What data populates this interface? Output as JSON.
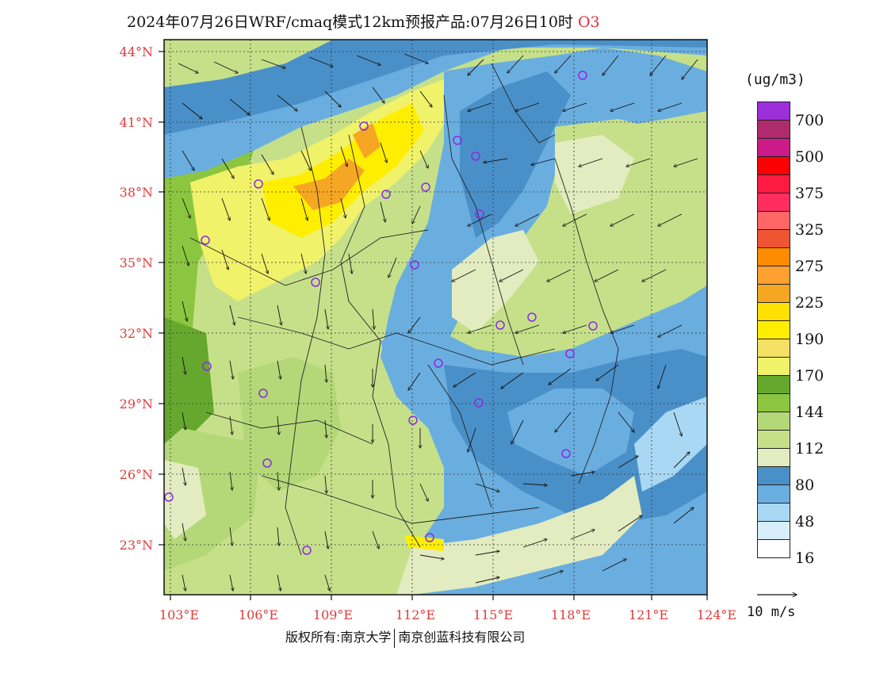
{
  "title": {
    "main": "2024年07月26日WRF/cmaq模式12km预报产品:07月26日10时",
    "species": "O3"
  },
  "axes": {
    "lat_labels": [
      "44°N",
      "41°N",
      "38°N",
      "35°N",
      "32°N",
      "29°N",
      "26°N",
      "23°N"
    ],
    "lon_labels": [
      "103°E",
      "106°E",
      "109°E",
      "112°E",
      "115°E",
      "118°E",
      "121°E",
      "124°E"
    ]
  },
  "legend": {
    "unit": "(ug/m3)",
    "levels": [
      {
        "label": "700",
        "color": "#9b30d9"
      },
      {
        "label": "",
        "color": "#b02a6e"
      },
      {
        "label": "500",
        "color": "#cc1a88"
      },
      {
        "label": "",
        "color": "#ff0000"
      },
      {
        "label": "375",
        "color": "#ff1a40"
      },
      {
        "label": "",
        "color": "#ff2e5e"
      },
      {
        "label": "325",
        "color": "#ff6666"
      },
      {
        "label": "",
        "color": "#ee5533"
      },
      {
        "label": "275",
        "color": "#ff8c00"
      },
      {
        "label": "",
        "color": "#ffa030"
      },
      {
        "label": "225",
        "color": "#f5a623"
      },
      {
        "label": "",
        "color": "#ffe000"
      },
      {
        "label": "190",
        "color": "#ffee00"
      },
      {
        "label": "",
        "color": "#f5e066"
      },
      {
        "label": "170",
        "color": "#f0f26a"
      },
      {
        "label": "",
        "color": "#66a82e"
      },
      {
        "label": "144",
        "color": "#8cc640"
      },
      {
        "label": "",
        "color": "#b4d878"
      },
      {
        "label": "112",
        "color": "#c6e08a"
      },
      {
        "label": "",
        "color": "#e2ecc0"
      },
      {
        "label": "80",
        "color": "#4a90c8"
      },
      {
        "label": "",
        "color": "#6aaee0"
      },
      {
        "label": "48",
        "color": "#a8d8f4"
      },
      {
        "label": "",
        "color": "#d8eefa"
      },
      {
        "label": "16",
        "color": "#ffffff"
      }
    ]
  },
  "wind_reference": {
    "label": "10 m/s"
  },
  "copyright": {
    "left": "版权所有:南京大学",
    "right": "南京创蓝科技有限公司"
  },
  "colors": {
    "axis_label": "#e23a3a",
    "station_marker": "#8a2be2"
  }
}
